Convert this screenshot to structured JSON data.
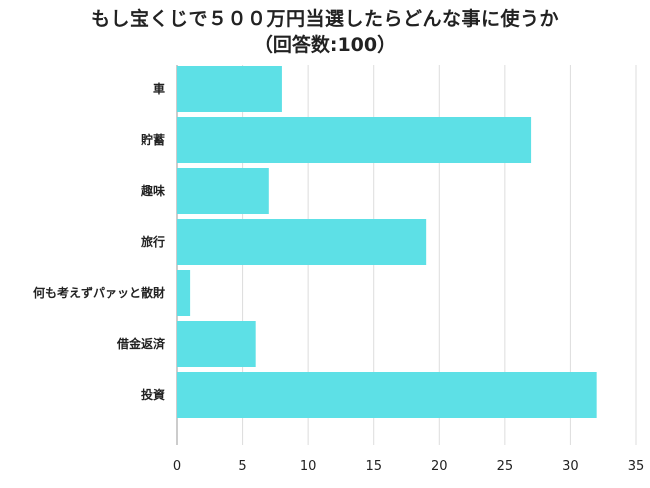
{
  "title": "もし宝くじで５００万円当選したらどんな事に使うか",
  "subtitle": "（回答数:100）",
  "colors": {
    "bar": "#5de0e6",
    "grid": "#dddddd",
    "axis": "#999999"
  },
  "chart_data": {
    "type": "bar",
    "orientation": "horizontal",
    "title": "もし宝くじで５００万円当選したらどんな事に使うか",
    "subtitle": "（回答数:100）",
    "categories": [
      "車",
      "貯蓄",
      "趣味",
      "旅行",
      "何も考えずパァッと散財",
      "借金返済",
      "投資"
    ],
    "values": [
      8,
      27,
      7,
      19,
      1,
      6,
      32
    ],
    "xlim": [
      0,
      35
    ],
    "xticks": [
      "0",
      "5",
      "10",
      "15",
      "20",
      "25",
      "30",
      "35"
    ],
    "grid": true,
    "legend": "none"
  }
}
